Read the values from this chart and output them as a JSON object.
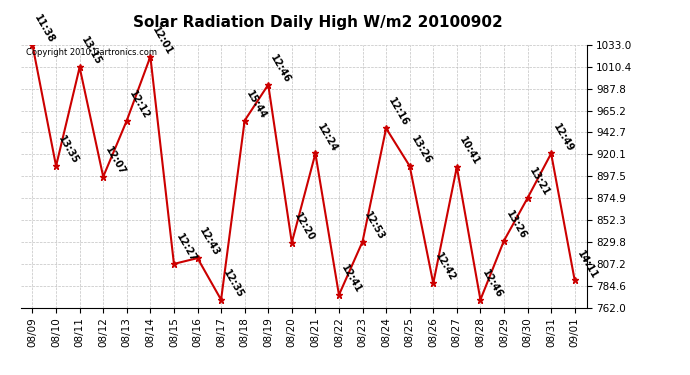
{
  "title": "Solar Radiation Daily High W/m2 20100902",
  "copyright": "Copyright 2010 Cartronics.com",
  "dates": [
    "08/09",
    "08/10",
    "08/11",
    "08/12",
    "08/13",
    "08/14",
    "08/15",
    "08/16",
    "08/17",
    "08/18",
    "08/19",
    "08/20",
    "08/21",
    "08/22",
    "08/23",
    "08/24",
    "08/25",
    "08/26",
    "08/27",
    "08/28",
    "08/29",
    "08/30",
    "08/31",
    "09/01"
  ],
  "values": [
    1033.0,
    908.0,
    1010.0,
    897.0,
    955.0,
    1021.0,
    807.0,
    813.0,
    770.0,
    955.0,
    992.0,
    829.0,
    921.0,
    775.0,
    830.0,
    947.0,
    908.0,
    787.0,
    907.0,
    770.0,
    831.0,
    875.0,
    921.0,
    790.0
  ],
  "labels": [
    "11:38",
    "13:35",
    "13:15",
    "12:07",
    "12:12",
    "12:01",
    "12:27",
    "12:43",
    "12:35",
    "15:44",
    "12:46",
    "12:20",
    "12:24",
    "12:41",
    "12:53",
    "12:16",
    "13:26",
    "12:42",
    "10:41",
    "12:46",
    "13:26",
    "13:21",
    "12:49",
    "14:11"
  ],
  "ymin": 762.0,
  "ymax": 1033.0,
  "yticks": [
    762.0,
    784.6,
    807.2,
    829.8,
    852.3,
    874.9,
    897.5,
    920.1,
    942.7,
    965.2,
    987.8,
    1010.4,
    1033.0
  ],
  "line_color": "#cc0000",
  "marker_color": "#cc0000",
  "bg_color": "#ffffff",
  "grid_color": "#bbbbbb",
  "title_fontsize": 11,
  "label_fontsize": 7,
  "tick_fontsize": 7.5,
  "copyright_fontsize": 6
}
